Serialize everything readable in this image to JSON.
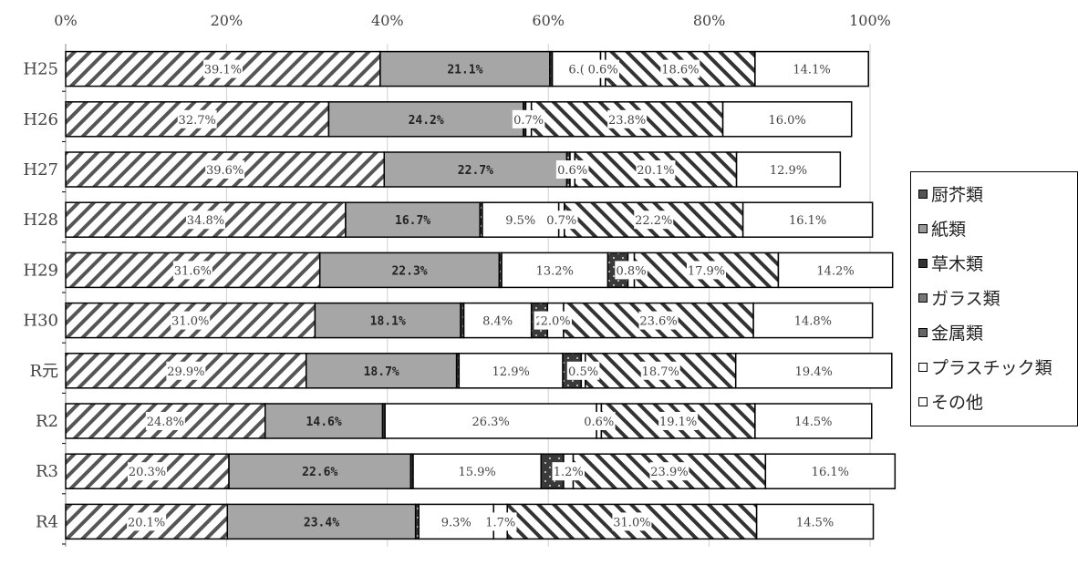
{
  "chart_data": {
    "type": "bar",
    "orientation": "horizontal",
    "stacked": "percent",
    "categories": [
      "H25",
      "H26",
      "H27",
      "H28",
      "H29",
      "H30",
      "R元",
      "R2",
      "R3",
      "R4"
    ],
    "x_ticks": [
      "0%",
      "20%",
      "40%",
      "60%",
      "80%",
      "100%"
    ],
    "xlim": [
      0,
      100
    ],
    "grid": true,
    "legend_position": "right",
    "series": [
      {
        "name": "厨芥類",
        "pattern": "diagonal",
        "values": [
          39.1,
          32.7,
          39.6,
          34.8,
          31.6,
          31.0,
          29.9,
          24.8,
          20.3,
          20.1
        ]
      },
      {
        "name": "紙類",
        "pattern": "solid-gray",
        "values": [
          21.1,
          24.2,
          22.7,
          16.7,
          22.3,
          18.1,
          18.7,
          14.6,
          22.6,
          23.4
        ]
      },
      {
        "name": "草木類",
        "pattern": "dark-dots",
        "values": [
          0.3,
          0.3,
          0.4,
          0.3,
          0.3,
          0.4,
          0.3,
          0.3,
          0.3,
          0.4
        ]
      },
      {
        "name": "ガラス類",
        "pattern": "white",
        "values": [
          6.0,
          0.0,
          0.0,
          9.5,
          13.2,
          8.4,
          12.9,
          26.3,
          15.9,
          9.3
        ]
      },
      {
        "name": "金属類",
        "pattern": "dark-dots",
        "values": [
          0.0,
          0.0,
          0.0,
          0.0,
          2.5,
          2.0,
          2.3,
          0.0,
          2.8,
          0.0
        ]
      },
      {
        "name": "プラスチック類",
        "pattern": "white",
        "values": [
          0.6,
          0.7,
          0.6,
          0.7,
          0.8,
          2.0,
          0.5,
          0.6,
          1.2,
          1.7
        ]
      },
      {
        "name": "その他",
        "pattern": "backslash",
        "values": [
          18.6,
          23.8,
          20.1,
          22.2,
          17.9,
          23.6,
          18.7,
          19.1,
          23.9,
          31.0
        ]
      },
      {
        "name": "",
        "pattern": "white",
        "values": [
          14.1,
          16.0,
          12.9,
          16.1,
          14.2,
          14.8,
          19.4,
          14.5,
          16.1,
          14.5
        ]
      }
    ],
    "labels": [
      [
        "39.1%",
        "21.1%",
        "",
        "6.(",
        "",
        "0.6%",
        "18.6%",
        "14.1%"
      ],
      [
        "32.7%",
        "24.2%",
        "",
        "",
        "",
        "0.7%",
        "23.8%",
        "16.0%"
      ],
      [
        "39.6%",
        "22.7%",
        "",
        "",
        "",
        "0.6%",
        "20.1%",
        "12.9%"
      ],
      [
        "34.8%",
        "16.7%",
        "",
        "9.5%",
        "",
        "0.7%",
        "22.2%",
        "16.1%"
      ],
      [
        "31.6%",
        "22.3%",
        "",
        "13.2%",
        "",
        "0.8%",
        "17.9%",
        "14.2%"
      ],
      [
        "31.0%",
        "18.1%",
        "",
        "8.4%",
        "2",
        "2.0%",
        "23.6%",
        "14.8%"
      ],
      [
        "29.9%",
        "18.7%",
        "",
        "12.9%",
        "",
        "0.5%",
        "18.7%",
        "19.4%"
      ],
      [
        "24.8%",
        "14.6%",
        "",
        "26.3%",
        "",
        "0.6%",
        "19.1%",
        "14.5%"
      ],
      [
        "20.3%",
        "22.6%",
        "",
        "15.9%",
        "",
        "1.2%",
        "23.9%",
        "16.1%"
      ],
      [
        "20.1%",
        "23.4%",
        "",
        "9.3%",
        "",
        "1.7%",
        "31.0%",
        "14.5%"
      ]
    ]
  },
  "legend": {
    "items": [
      {
        "label": "厨芥類",
        "swatch": "#555555"
      },
      {
        "label": "紙類",
        "swatch": "#999999"
      },
      {
        "label": "草木類",
        "swatch": "#333333"
      },
      {
        "label": "ガラス類",
        "swatch": "#777777"
      },
      {
        "label": "金属類",
        "swatch": "#666666"
      },
      {
        "label": "プラスチック類",
        "swatch": "#ffffff"
      },
      {
        "label": "その他",
        "swatch": "#ffffff"
      }
    ]
  }
}
